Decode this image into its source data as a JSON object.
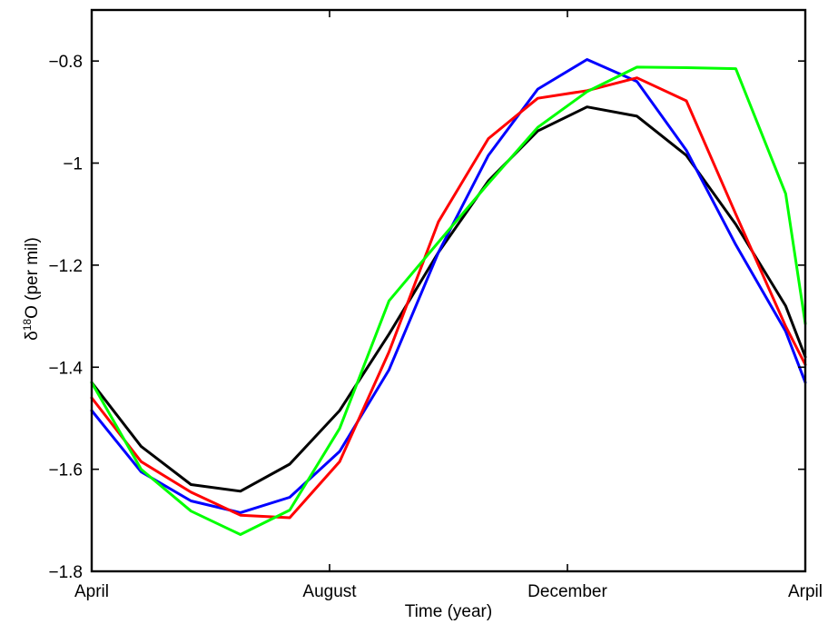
{
  "chart_data": {
    "type": "line",
    "title": "",
    "xlabel": "Time (year)",
    "ylabel": "δ18O (per mil)",
    "ylabel_parts": {
      "symbol": "δ",
      "superscript": "18",
      "rest": "O (per mil)"
    },
    "x_tick_labels": [
      "April",
      "August",
      "December",
      "Arpil"
    ],
    "x_tick_positions": [
      0,
      4,
      8,
      12
    ],
    "xlim": [
      0,
      12
    ],
    "ylim": [
      -1.8,
      -0.7
    ],
    "y_ticks": [
      -1.8,
      -1.6,
      -1.4,
      -1.2,
      -1.0,
      -0.8
    ],
    "y_tick_labels": [
      "−1.8",
      "−1.6",
      "−1.4",
      "−1.2",
      "−1",
      "−0.8"
    ],
    "grid": false,
    "legend": "none",
    "series": [
      {
        "color": "#000000",
        "x": [
          0,
          0.83,
          1.67,
          2.5,
          3.33,
          4.17,
          5,
          5.83,
          6.67,
          7.5,
          8.33,
          9.17,
          10,
          10.83,
          11.67,
          12
        ],
        "y": [
          -1.43,
          -1.555,
          -1.63,
          -1.643,
          -1.59,
          -1.485,
          -1.335,
          -1.175,
          -1.035,
          -0.937,
          -0.89,
          -0.908,
          -0.985,
          -1.12,
          -1.28,
          -1.38
        ]
      },
      {
        "color": "#0000ff",
        "x": [
          0,
          0.83,
          1.67,
          2.5,
          3.33,
          4.17,
          5,
          5.83,
          6.67,
          7.5,
          8.33,
          9.17,
          10,
          10.83,
          11.67,
          12
        ],
        "y": [
          -1.485,
          -1.605,
          -1.662,
          -1.685,
          -1.655,
          -1.565,
          -1.405,
          -1.175,
          -0.985,
          -0.855,
          -0.797,
          -0.84,
          -0.975,
          -1.16,
          -1.33,
          -1.43
        ]
      },
      {
        "color": "#ff0000",
        "x": [
          0,
          0.83,
          1.67,
          2.5,
          3.33,
          4.17,
          5,
          5.83,
          6.67,
          7.5,
          8.33,
          9.17,
          10,
          10.83,
          11.67,
          12
        ],
        "y": [
          -1.46,
          -1.585,
          -1.645,
          -1.69,
          -1.695,
          -1.585,
          -1.37,
          -1.115,
          -0.952,
          -0.873,
          -0.858,
          -0.833,
          -0.878,
          -1.1,
          -1.32,
          -1.395
        ]
      },
      {
        "color": "#00ff00",
        "x": [
          0,
          0.83,
          1.67,
          2.5,
          3.33,
          4.17,
          5,
          5.83,
          6.67,
          7.5,
          8.33,
          9.17,
          10,
          10.83,
          11.67,
          12
        ],
        "y": [
          -1.43,
          -1.6,
          -1.682,
          -1.728,
          -1.68,
          -1.52,
          -1.27,
          -1.155,
          -1.04,
          -0.93,
          -0.86,
          -0.812,
          -0.813,
          -0.815,
          -1.06,
          -1.315
        ]
      }
    ]
  }
}
